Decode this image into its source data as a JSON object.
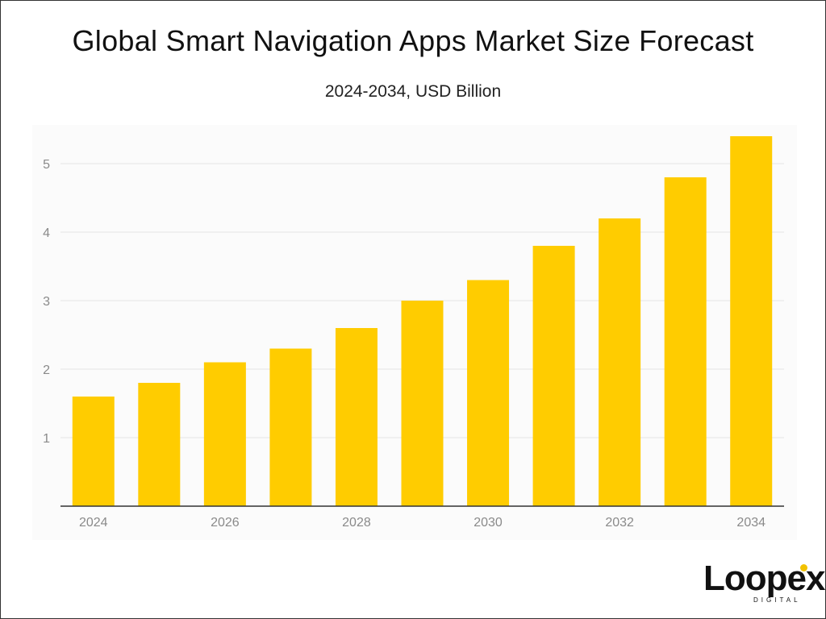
{
  "chart_data": {
    "type": "bar",
    "title": "Global Smart Navigation Apps Market Size Forecast",
    "subtitle": "2024-2034, USD Billion",
    "categories": [
      "2024",
      "2025",
      "2026",
      "2027",
      "2028",
      "2029",
      "2030",
      "2031",
      "2032",
      "2033",
      "2034"
    ],
    "x_tick_labels": [
      "2024",
      "2026",
      "2028",
      "2030",
      "2032",
      "2034"
    ],
    "y_ticks": [
      "1",
      "2",
      "3",
      "4",
      "5"
    ],
    "series": [
      {
        "values": [
          1.6,
          1.8,
          2.1,
          2.3,
          2.6,
          3.0,
          3.3,
          3.8,
          4.2,
          4.8,
          5.4
        ]
      }
    ],
    "ylim": [
      0,
      5.4
    ],
    "grid": true,
    "legend": "none",
    "bar_color": "#FFCC00"
  },
  "brand": {
    "name": "Loopex",
    "tagline": "DIGITAL",
    "accent": "#F2C200"
  }
}
